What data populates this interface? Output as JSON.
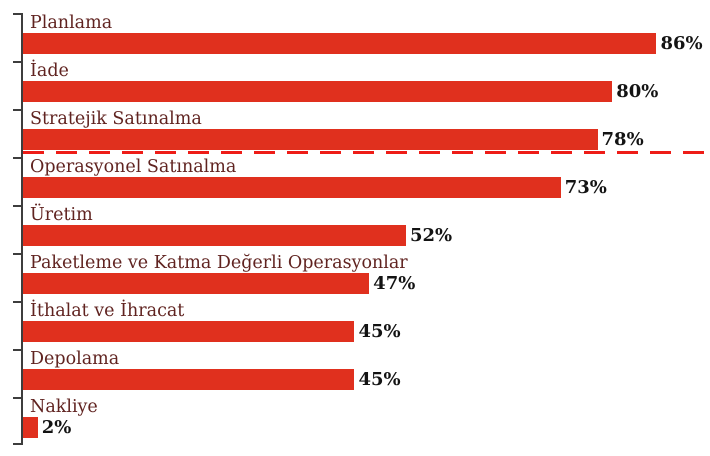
{
  "chart_data": {
    "type": "bar",
    "orientation": "horizontal",
    "title": "",
    "xlabel": "",
    "ylabel": "",
    "grid": false,
    "legend": false,
    "xlim": [
      0,
      93
    ],
    "categories": [
      "Planlama",
      "İade",
      "Stratejik Satınalma",
      "Operasyonel Satınalma",
      "Üretim",
      "Paketleme ve Katma Değerli Operasyonlar",
      "İthalat ve İhracat",
      "Depolama",
      "Nakliye"
    ],
    "values": [
      86,
      80,
      78,
      73,
      52,
      47,
      45,
      45,
      2
    ],
    "value_labels": [
      "86%",
      "80%",
      "78%",
      "73%",
      "52%",
      "47%",
      "45%",
      "45%",
      "2%"
    ],
    "bar_color": "#e0301e",
    "category_label_color": "#602320",
    "value_label_color": "#131313",
    "axis_color": "#3d3d3d",
    "threshold_line": {
      "after_category": "Stratejik Satınalma",
      "style": "dashed",
      "color": "#ee1c17"
    }
  }
}
